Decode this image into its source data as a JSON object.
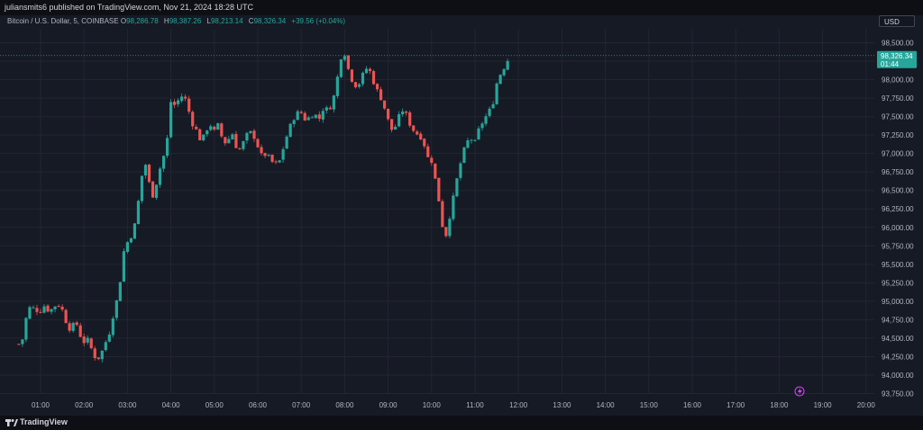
{
  "header": {
    "publish_line": "juliansmits6 published on TradingView.com, Nov 21, 2024 18:28 UTC"
  },
  "symbol": {
    "name": "Bitcoin / U.S. Dollar, 5, COINBASE",
    "o_label": "O",
    "o_value": "98,286.78",
    "h_label": "H",
    "h_value": "98,387.26",
    "l_label": "L",
    "l_value": "98,213.14",
    "c_label": "C",
    "c_value": "98,326.34",
    "change": "+39.56 (+0.04%)"
  },
  "currency_button": "USD",
  "price_label": {
    "price": "98,326.34",
    "countdown": "01:44"
  },
  "footer": {
    "brand": "TradingView"
  },
  "colors": {
    "up": "#26a69a",
    "down": "#ef5350",
    "background": "#161a25",
    "grid": "#232632",
    "price_line": "#26a69a"
  },
  "chart_data": {
    "type": "candlestick",
    "ylim": [
      93750,
      98625
    ],
    "y_ticks": [
      98500,
      98250,
      98000,
      97750,
      97500,
      97250,
      97000,
      96750,
      96500,
      96250,
      96000,
      95750,
      95500,
      95250,
      95000,
      94750,
      94500,
      94250,
      94000,
      93750
    ],
    "y_tick_labels": [
      "98,500.00",
      "98,250.00",
      "98,000.00",
      "97,750.00",
      "97,500.00",
      "97,250.00",
      "97,000.00",
      "96,750.00",
      "96,500.00",
      "96,250.00",
      "96,000.00",
      "95,750.00",
      "95,500.00",
      "95,250.00",
      "95,000.00",
      "94,750.00",
      "94,500.00",
      "94,250.00",
      "94,000.00",
      "93,750.00"
    ],
    "x_tick_labels": [
      "01:00",
      "02:00",
      "03:00",
      "04:00",
      "05:00",
      "06:00",
      "07:00",
      "08:00",
      "09:00",
      "10:00",
      "11:00",
      "12:00",
      "13:00",
      "14:00",
      "15:00",
      "16:00",
      "17:00",
      "18:00",
      "19:00",
      "20:00"
    ],
    "current_price": 98326.34,
    "close_path": [
      [
        0.5,
        94420
      ],
      [
        0.6,
        94500
      ],
      [
        0.7,
        94900
      ],
      [
        0.8,
        94920
      ],
      [
        0.9,
        94880
      ],
      [
        1.0,
        94870
      ],
      [
        1.1,
        94950
      ],
      [
        1.2,
        94850
      ],
      [
        1.3,
        94930
      ],
      [
        1.4,
        94960
      ],
      [
        1.5,
        94880
      ],
      [
        1.6,
        94700
      ],
      [
        1.7,
        94600
      ],
      [
        1.8,
        94750
      ],
      [
        1.9,
        94550
      ],
      [
        2.0,
        94450
      ],
      [
        2.1,
        94480
      ],
      [
        2.2,
        94300
      ],
      [
        2.3,
        94200
      ],
      [
        2.4,
        94300
      ],
      [
        2.5,
        94450
      ],
      [
        2.6,
        94600
      ],
      [
        2.7,
        94900
      ],
      [
        2.8,
        95100
      ],
      [
        2.9,
        95650
      ],
      [
        3.0,
        95800
      ],
      [
        3.1,
        95900
      ],
      [
        3.2,
        96100
      ],
      [
        3.3,
        96600
      ],
      [
        3.4,
        96900
      ],
      [
        3.5,
        96600
      ],
      [
        3.6,
        96400
      ],
      [
        3.7,
        96700
      ],
      [
        3.8,
        96900
      ],
      [
        3.9,
        97100
      ],
      [
        4.0,
        97700
      ],
      [
        4.1,
        97650
      ],
      [
        4.2,
        97750
      ],
      [
        4.3,
        97800
      ],
      [
        4.4,
        97600
      ],
      [
        4.5,
        97400
      ],
      [
        4.6,
        97300
      ],
      [
        4.7,
        97150
      ],
      [
        4.8,
        97300
      ],
      [
        4.9,
        97400
      ],
      [
        5.0,
        97300
      ],
      [
        5.1,
        97400
      ],
      [
        5.2,
        97150
      ],
      [
        5.3,
        97150
      ],
      [
        5.4,
        97300
      ],
      [
        5.5,
        97100
      ],
      [
        5.6,
        97050
      ],
      [
        5.7,
        97200
      ],
      [
        5.8,
        97300
      ],
      [
        5.9,
        97250
      ],
      [
        6.0,
        97100
      ],
      [
        6.1,
        96950
      ],
      [
        6.2,
        97000
      ],
      [
        6.3,
        96900
      ],
      [
        6.4,
        96850
      ],
      [
        6.5,
        96900
      ],
      [
        6.6,
        97100
      ],
      [
        6.7,
        97300
      ],
      [
        6.8,
        97450
      ],
      [
        6.9,
        97550
      ],
      [
        7.0,
        97550
      ],
      [
        7.1,
        97450
      ],
      [
        7.2,
        97500
      ],
      [
        7.3,
        97550
      ],
      [
        7.4,
        97450
      ],
      [
        7.5,
        97600
      ],
      [
        7.6,
        97600
      ],
      [
        7.7,
        97650
      ],
      [
        7.8,
        97900
      ],
      [
        7.9,
        98300
      ],
      [
        8.0,
        98350
      ],
      [
        8.1,
        98100
      ],
      [
        8.2,
        97950
      ],
      [
        8.3,
        97900
      ],
      [
        8.4,
        98050
      ],
      [
        8.5,
        98150
      ],
      [
        8.6,
        98100
      ],
      [
        8.7,
        97900
      ],
      [
        8.8,
        97800
      ],
      [
        8.9,
        97650
      ],
      [
        9.0,
        97450
      ],
      [
        9.1,
        97300
      ],
      [
        9.2,
        97400
      ],
      [
        9.3,
        97600
      ],
      [
        9.4,
        97550
      ],
      [
        9.5,
        97400
      ],
      [
        9.6,
        97300
      ],
      [
        9.7,
        97250
      ],
      [
        9.8,
        97200
      ],
      [
        9.9,
        96950
      ],
      [
        10.0,
        96900
      ],
      [
        10.1,
        96600
      ],
      [
        10.2,
        96250
      ],
      [
        10.3,
        95800
      ],
      [
        10.4,
        96100
      ],
      [
        10.5,
        96400
      ],
      [
        10.6,
        96700
      ],
      [
        10.7,
        96950
      ],
      [
        10.8,
        97150
      ],
      [
        10.9,
        97200
      ],
      [
        11.0,
        97150
      ],
      [
        11.1,
        97350
      ],
      [
        11.2,
        97450
      ],
      [
        11.3,
        97550
      ],
      [
        11.4,
        97650
      ],
      [
        11.5,
        97950
      ],
      [
        11.6,
        98100
      ],
      [
        11.7,
        98200
      ],
      [
        11.8,
        98326
      ]
    ],
    "x_range_hours": [
      0.4,
      20.4
    ]
  }
}
